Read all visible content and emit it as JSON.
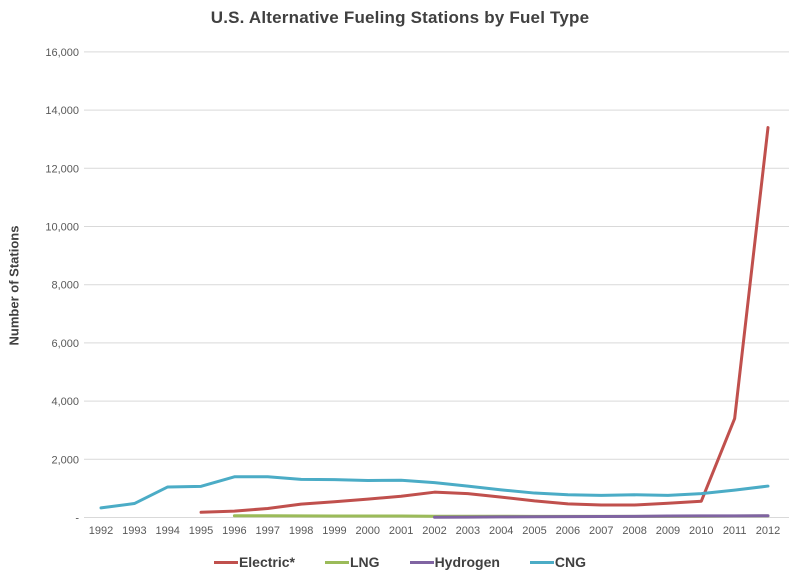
{
  "chart_data": {
    "type": "line",
    "title": "U.S. Alternative Fueling Stations by Fuel Type",
    "xlabel": "",
    "ylabel": "Number of Stations",
    "ylim": [
      0,
      16000
    ],
    "ytick_step": 2000,
    "ytick_labels": [
      "-",
      "2,000",
      "4,000",
      "6,000",
      "8,000",
      "10,000",
      "12,000",
      "14,000",
      "16,000"
    ],
    "grid": true,
    "legend_position": "bottom",
    "x": [
      1992,
      1993,
      1994,
      1995,
      1996,
      1997,
      1998,
      1999,
      2000,
      2001,
      2002,
      2003,
      2004,
      2005,
      2006,
      2007,
      2008,
      2009,
      2010,
      2011,
      2012
    ],
    "series": [
      {
        "name": "Electric*",
        "color": "#C0504D",
        "values": [
          null,
          null,
          null,
          180,
          220,
          310,
          460,
          540,
          630,
          730,
          870,
          820,
          700,
          570,
          470,
          430,
          430,
          490,
          560,
          3400,
          13400
        ]
      },
      {
        "name": "LNG",
        "color": "#9BBB59",
        "values": [
          null,
          null,
          null,
          null,
          60,
          60,
          55,
          50,
          50,
          50,
          45,
          45,
          45,
          40,
          40,
          40,
          40,
          40,
          45,
          50,
          55
        ]
      },
      {
        "name": "Hydrogen",
        "color": "#8064A2",
        "values": [
          null,
          null,
          null,
          null,
          null,
          null,
          null,
          null,
          null,
          null,
          10,
          15,
          20,
          25,
          30,
          35,
          40,
          50,
          55,
          55,
          60
        ]
      },
      {
        "name": "CNG",
        "color": "#4BACC6",
        "values": [
          330,
          480,
          1050,
          1070,
          1400,
          1400,
          1310,
          1300,
          1270,
          1280,
          1200,
          1080,
          950,
          840,
          780,
          760,
          780,
          760,
          820,
          940,
          1080
        ]
      }
    ]
  },
  "colors": {
    "grid": "#d9d9d9",
    "tick_text": "#595959",
    "title_text": "#404040"
  }
}
